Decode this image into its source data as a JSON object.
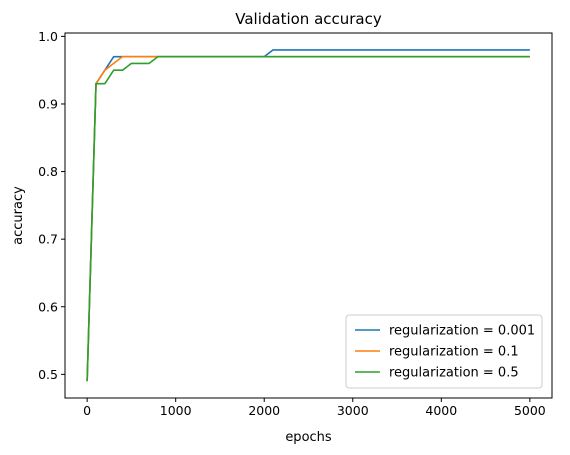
{
  "chart_data": {
    "type": "line",
    "title": "Validation accuracy",
    "xlabel": "epochs",
    "ylabel": "accuracy",
    "xlim": [
      -250,
      5250
    ],
    "ylim": [
      0.465,
      1.005
    ],
    "xticks": [
      0,
      1000,
      2000,
      3000,
      4000,
      5000
    ],
    "yticks": [
      0.5,
      0.6,
      0.7,
      0.8,
      0.9,
      1.0
    ],
    "ytick_labels": [
      "0.5",
      "0.6",
      "0.7",
      "0.8",
      "0.9",
      "1.0"
    ],
    "grid": false,
    "legend_position": "lower-right",
    "series": [
      {
        "name": "regularization = 0.001",
        "color": "#1f77b4",
        "x": [
          0,
          100,
          200,
          300,
          400,
          500,
          600,
          700,
          800,
          900,
          1000,
          2000,
          2100,
          3000,
          4000,
          5000
        ],
        "y": [
          0.49,
          0.93,
          0.95,
          0.97,
          0.97,
          0.97,
          0.97,
          0.97,
          0.97,
          0.97,
          0.97,
          0.97,
          0.98,
          0.98,
          0.98,
          0.98
        ]
      },
      {
        "name": "regularization = 0.1",
        "color": "#ff7f0e",
        "x": [
          0,
          100,
          200,
          300,
          400,
          500,
          600,
          700,
          800,
          900,
          1000,
          2000,
          3000,
          4000,
          5000
        ],
        "y": [
          0.49,
          0.93,
          0.95,
          0.96,
          0.97,
          0.97,
          0.97,
          0.97,
          0.97,
          0.97,
          0.97,
          0.97,
          0.97,
          0.97,
          0.97
        ]
      },
      {
        "name": "regularization = 0.5",
        "color": "#2ca02c",
        "x": [
          0,
          100,
          200,
          300,
          400,
          500,
          600,
          700,
          800,
          900,
          1000,
          2000,
          3000,
          4000,
          5000
        ],
        "y": [
          0.49,
          0.93,
          0.93,
          0.95,
          0.95,
          0.96,
          0.96,
          0.96,
          0.97,
          0.97,
          0.97,
          0.97,
          0.97,
          0.97,
          0.97
        ]
      }
    ]
  }
}
